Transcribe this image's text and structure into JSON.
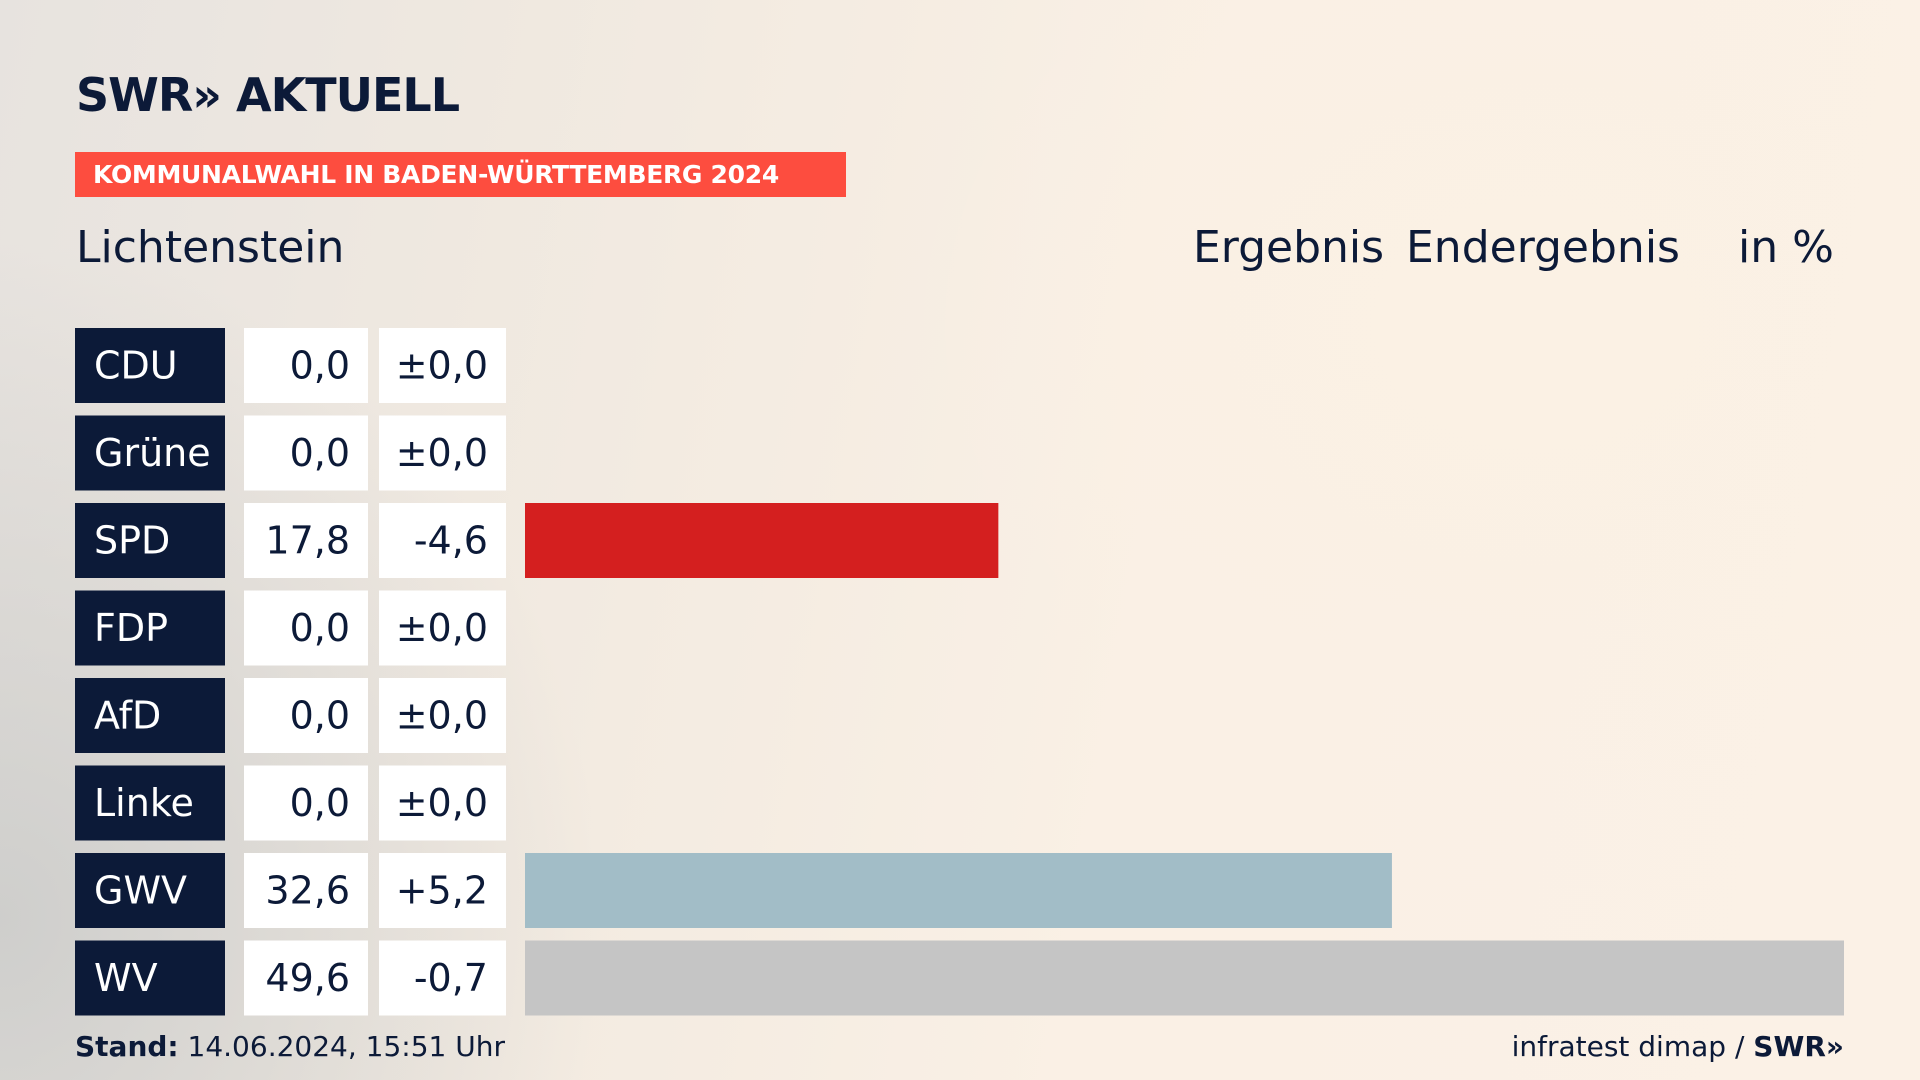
{
  "header": {
    "logo": "SWR» AKTUELL",
    "banner": "KOMMUNALWAHL IN BADEN-WÜRTTEMBERG 2024"
  },
  "place": "Lichtenstein",
  "columns": {
    "ergebnis": "Ergebnis",
    "endergebnis": "Endergebnis",
    "unit": "in %"
  },
  "footer": {
    "stand_label": "Stand:",
    "stand_value": "14.06.2024, 15:51 Uhr",
    "source": "infratest dimap /",
    "brand": "SWR»"
  },
  "colors": {
    "party_box": "#0c1a38",
    "banner": "#fd4d3f",
    "cell_bg": "#ffffff"
  },
  "chart_data": {
    "type": "bar",
    "orientation": "horizontal",
    "unit": "%",
    "xlim": [
      0,
      49.6
    ],
    "categories": [
      "CDU",
      "Grüne",
      "SPD",
      "FDP",
      "AfD",
      "Linke",
      "GWV",
      "WV"
    ],
    "values": [
      0.0,
      0.0,
      17.8,
      0.0,
      0.0,
      0.0,
      32.6,
      49.6
    ],
    "value_labels": [
      "0,0",
      "0,0",
      "17,8",
      "0,0",
      "0,0",
      "0,0",
      "32,6",
      "49,6"
    ],
    "change_labels": [
      "±0,0",
      "±0,0",
      "-4,6",
      "±0,0",
      "±0,0",
      "±0,0",
      "+5,2",
      "-0,7"
    ],
    "colors": [
      "#000000",
      "#1e9e2f",
      "#d41f1f",
      "#f5d800",
      "#1e9bd8",
      "#b01f5a",
      "#a2bdc7",
      "#c5c5c5"
    ]
  }
}
